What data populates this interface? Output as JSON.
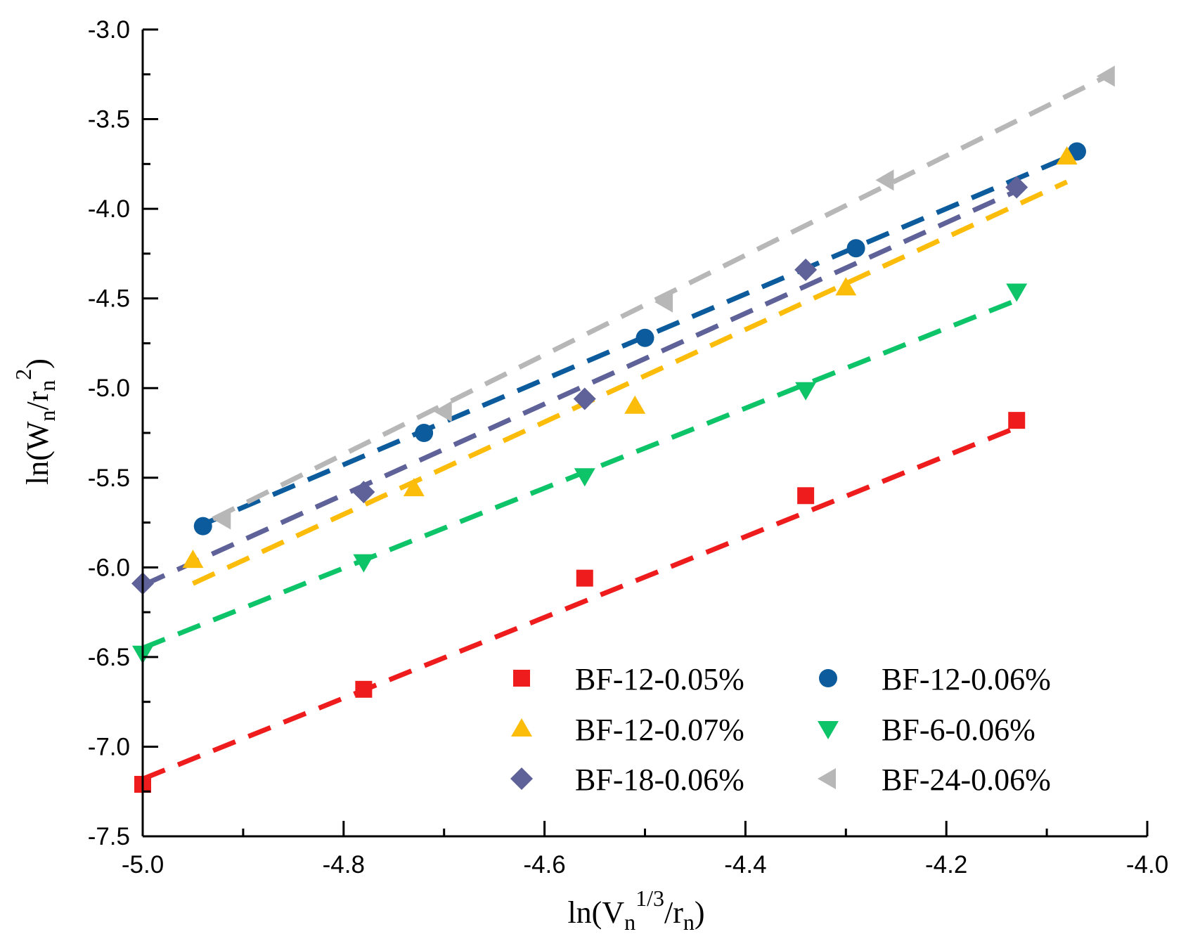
{
  "chart_data": {
    "type": "scatter",
    "title": "",
    "xlabel": {
      "prefix": "ln(V",
      "sub1": "n",
      "sup": "1/3",
      "mid": "/r",
      "sub2": "n",
      "suffix": ")"
    },
    "ylabel": {
      "prefix": "ln(W",
      "sub1": "n",
      "mid": "/r",
      "sub2": "n",
      "sup": "2",
      "suffix": ")"
    },
    "xlim": [
      -5.0,
      -4.0
    ],
    "ylim": [
      -7.5,
      -3.0
    ],
    "x_ticks": [
      "-5.0",
      "-4.8",
      "-4.6",
      "-4.4",
      "-4.2",
      "-4.0"
    ],
    "y_ticks": [
      "-3.0",
      "-3.5",
      "-4.0",
      "-4.5",
      "-5.0",
      "-5.5",
      "-6.0",
      "-6.5",
      "-7.0",
      "-7.5"
    ],
    "fit_line_style": "dashed",
    "legend_position": "bottom-right",
    "series": [
      {
        "name": "BF-12-0.05%",
        "marker": "square",
        "color": "#ee1c1c",
        "x": [
          -5.0,
          -4.78,
          -4.56,
          -4.34,
          -4.13
        ],
        "y": [
          -7.21,
          -6.68,
          -6.06,
          -5.6,
          -5.18
        ],
        "fit": [
          [
            -5.0,
            -7.18
          ],
          [
            -4.13,
            -5.22
          ]
        ]
      },
      {
        "name": "BF-12-0.06%",
        "marker": "circle",
        "color": "#0c5b9c",
        "x": [
          -4.94,
          -4.72,
          -4.5,
          -4.29,
          -4.07
        ],
        "y": [
          -5.77,
          -5.25,
          -4.72,
          -4.22,
          -3.68
        ],
        "fit": [
          [
            -4.94,
            -5.76
          ],
          [
            -4.07,
            -3.69
          ]
        ]
      },
      {
        "name": "BF-12-0.07%",
        "marker": "triangle-up",
        "color": "#fcbd0a",
        "x": [
          -4.95,
          -4.73,
          -4.51,
          -4.3,
          -4.08
        ],
        "y": [
          -5.96,
          -5.56,
          -5.1,
          -4.44,
          -3.71
        ],
        "fit": [
          [
            -4.95,
            -6.09
          ],
          [
            -4.08,
            -3.85
          ]
        ]
      },
      {
        "name": "BF-6-0.06%",
        "marker": "triangle-down",
        "color": "#0ec469",
        "x": [
          -5.0,
          -4.78,
          -4.56,
          -4.34,
          -4.13
        ],
        "y": [
          -6.48,
          -5.97,
          -5.49,
          -5.01,
          -4.46
        ],
        "fit": [
          [
            -5.0,
            -6.45
          ],
          [
            -4.13,
            -4.51
          ]
        ]
      },
      {
        "name": "BF-18-0.06%",
        "marker": "diamond",
        "color": "#5f6298",
        "x": [
          -5.0,
          -4.78,
          -4.56,
          -4.34,
          -4.13
        ],
        "y": [
          -6.09,
          -5.58,
          -5.06,
          -4.34,
          -3.88
        ],
        "fit": [
          [
            -5.0,
            -6.1
          ],
          [
            -4.13,
            -3.9
          ]
        ]
      },
      {
        "name": "BF-24-0.06%",
        "marker": "triangle-left",
        "color": "#b7b7b7",
        "x": [
          -4.92,
          -4.7,
          -4.48,
          -4.26,
          -4.04
        ],
        "y": [
          -5.73,
          -5.13,
          -4.52,
          -3.84,
          -3.26
        ],
        "fit": [
          [
            -4.93,
            -5.73
          ],
          [
            -4.04,
            -3.26
          ]
        ]
      }
    ]
  }
}
